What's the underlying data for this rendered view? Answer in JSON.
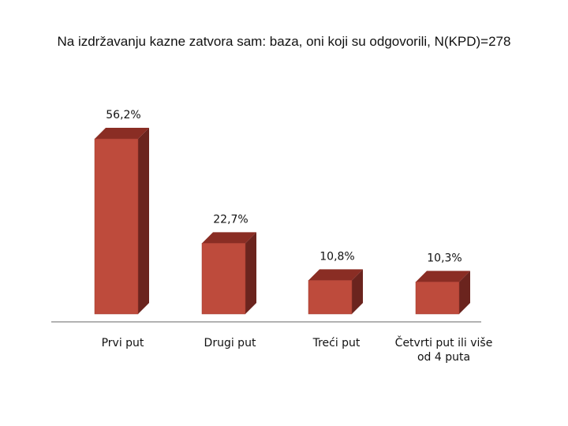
{
  "chart_data": {
    "type": "bar3d",
    "title": "Na izdržavanju kazne zatvora sam: baza, oni koji su odgovorili, N(KPD)=278",
    "categories": [
      "Prvi put",
      "Drugi put",
      "Treći put",
      "Četvrti put ili više od 4 puta"
    ],
    "values": [
      56.2,
      22.7,
      10.8,
      10.3
    ],
    "value_labels": [
      "56,2%",
      "22,7%",
      "10,8%",
      "10,3%"
    ],
    "color": "#be4b3c"
  }
}
